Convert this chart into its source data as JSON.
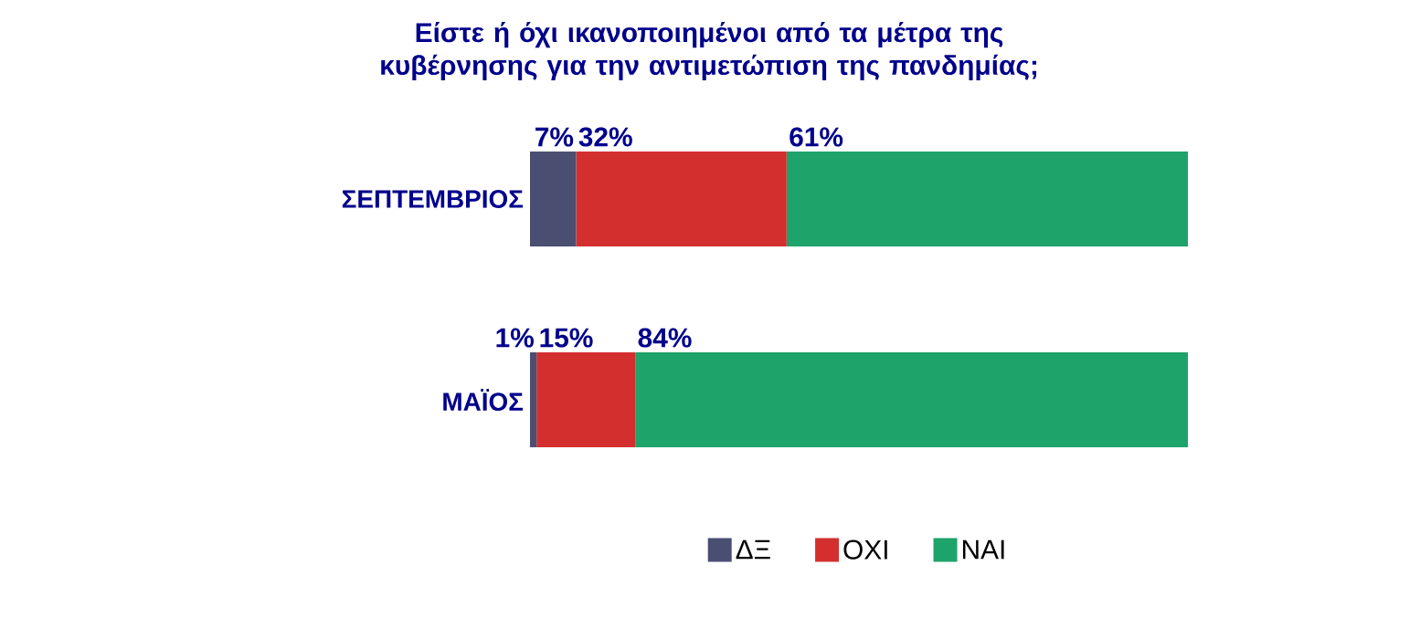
{
  "chart_data": {
    "type": "bar",
    "orientation": "horizontal",
    "stacked": true,
    "title": "Είστε ή όχι ικανοποιημένοι από τα μέτρα της κυβέρνησης για την αντιμετώπιση της πανδημίας;",
    "categories": [
      "ΣΕΠΤΕΜΒΡΙΟΣ",
      "ΜΑΪΟΣ"
    ],
    "series": [
      {
        "name": "ΔΞ",
        "color": "#4a4f72",
        "values": [
          7,
          1
        ],
        "value_labels": [
          "7%",
          "1%"
        ]
      },
      {
        "name": "ΟΧΙ",
        "color": "#d42f2f",
        "values": [
          32,
          15
        ],
        "value_labels": [
          "32%",
          "15%"
        ]
      },
      {
        "name": "ΝΑΙ",
        "color": "#1ea36b",
        "values": [
          61,
          84
        ],
        "value_labels": [
          "61%",
          "84%"
        ]
      }
    ],
    "legend": "bottom"
  }
}
